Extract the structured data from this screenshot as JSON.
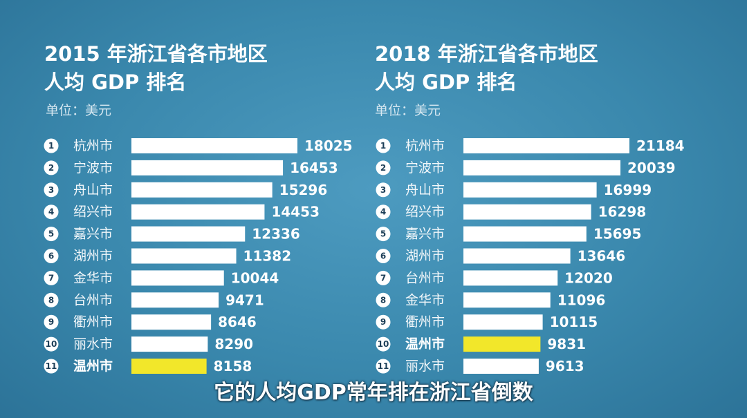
{
  "chart_data": [
    {
      "type": "bar",
      "orientation": "horizontal",
      "title_line1": "2015 年浙江省各市地区",
      "title_line2": "人均 GDP 排名",
      "unit": "单位：美元",
      "highlight": "温州市",
      "ranks": [
        "1",
        "2",
        "3",
        "4",
        "5",
        "6",
        "7",
        "8",
        "9",
        "10",
        "11"
      ],
      "categories": [
        "杭州市",
        "宁波市",
        "舟山市",
        "绍兴市",
        "嘉兴市",
        "湖州市",
        "金华市",
        "台州市",
        "衢州市",
        "丽水市",
        "温州市"
      ],
      "values": [
        18025,
        16453,
        15296,
        14453,
        12336,
        11382,
        10044,
        9471,
        8646,
        8290,
        8158
      ]
    },
    {
      "type": "bar",
      "orientation": "horizontal",
      "title_line1": "2018 年浙江省各市地区",
      "title_line2": "人均 GDP 排名",
      "unit": "单位：美元",
      "highlight": "温州市",
      "ranks": [
        "1",
        "2",
        "3",
        "4",
        "5",
        "6",
        "7",
        "8",
        "9",
        "10",
        "11"
      ],
      "categories": [
        "杭州市",
        "宁波市",
        "舟山市",
        "绍兴市",
        "嘉兴市",
        "湖州市",
        "台州市",
        "金华市",
        "衢州市",
        "温州市",
        "丽水市"
      ],
      "values": [
        21184,
        20039,
        16999,
        16298,
        15695,
        13646,
        12020,
        11096,
        10115,
        9831,
        9613
      ]
    }
  ],
  "subtitle": "它的人均GDP常年排在浙江省倒数",
  "colors": {
    "bar": "#ffffff",
    "highlight": "#f2e72a",
    "background": "#3a88ad"
  }
}
